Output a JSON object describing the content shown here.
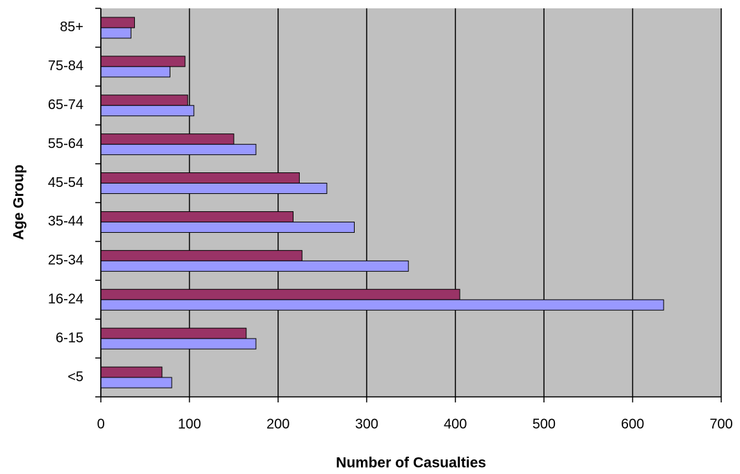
{
  "chart_data": {
    "type": "hbar",
    "x_label": "Number of Casualties",
    "y_label": "Age Group",
    "categories": [
      "<5",
      "6-15",
      "16-24",
      "25-34",
      "35-44",
      "45-54",
      "55-64",
      "65-74",
      "75-84",
      "85+"
    ],
    "series": [
      {
        "color": "#993366",
        "values": [
          69,
          164,
          405,
          227,
          217,
          224,
          150,
          98,
          95,
          38
        ]
      },
      {
        "color": "#9999ff",
        "values": [
          80,
          175,
          635,
          347,
          286,
          255,
          175,
          105,
          78,
          34
        ]
      }
    ],
    "xlim": [
      0,
      700
    ],
    "xticks": [
      0,
      100,
      200,
      300,
      400,
      500,
      600,
      700
    ],
    "grid": true,
    "plot_background": "#c0c0c0"
  }
}
